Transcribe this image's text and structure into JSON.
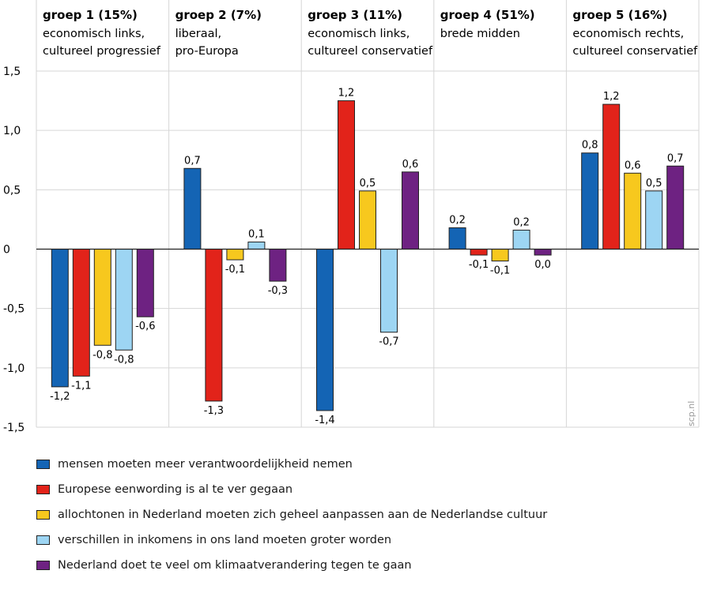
{
  "chart_data": {
    "type": "bar",
    "groups": [
      {
        "title": "groep 1 (15%)",
        "subtitle": [
          "economisch links,",
          "cultureel progressief"
        ]
      },
      {
        "title": "groep 2 (7%)",
        "subtitle": [
          "liberaal,",
          "pro-Europa"
        ]
      },
      {
        "title": "groep 3 (11%)",
        "subtitle": [
          "economisch links,",
          "cultureel conservatief"
        ]
      },
      {
        "title": "groep 4 (51%)",
        "subtitle": [
          "brede midden"
        ]
      },
      {
        "title": "groep 5 (16%)",
        "subtitle": [
          "economisch rechts,",
          "cultureel conservatief"
        ]
      }
    ],
    "series": [
      {
        "name": "mensen moeten meer verantwoordelijkheid  nemen",
        "color": "#1464b4",
        "values": [
          -1.16,
          0.68,
          -1.36,
          0.18,
          0.81
        ],
        "labels": [
          "-1,2",
          "0,7",
          "-1,4",
          "0,2",
          "0,8"
        ]
      },
      {
        "name": "Europese eenwording is al te ver gegaan",
        "color": "#e2231a",
        "values": [
          -1.07,
          -1.28,
          1.25,
          -0.05,
          1.22
        ],
        "labels": [
          "-1,1",
          "-1,3",
          "1,2",
          "-0,1",
          "1,2"
        ]
      },
      {
        "name": "allochtonen in Nederland moeten zich geheel aanpassen aan de Nederlandse cultuur",
        "color": "#f7c81e",
        "values": [
          -0.81,
          -0.09,
          0.49,
          -0.1,
          0.64
        ],
        "labels": [
          "-0,8",
          "-0,1",
          "0,5",
          "-0,1",
          "0,6"
        ]
      },
      {
        "name": "verschillen in inkomens in ons land moeten groter worden",
        "color": "#9dd5f3",
        "values": [
          -0.85,
          0.06,
          -0.7,
          0.16,
          0.49
        ],
        "labels": [
          "-0,8",
          "0,1",
          "-0,7",
          "0,2",
          "0,5"
        ]
      },
      {
        "name": "Nederland doet te veel om klimaatverandering tegen te gaan",
        "color": "#6e2282",
        "values": [
          -0.57,
          -0.27,
          0.65,
          -0.05,
          0.7
        ],
        "labels": [
          "-0,6",
          "-0,3",
          "0,6",
          "0,0",
          "0,7"
        ]
      }
    ],
    "yticks": [
      {
        "value": 1.5,
        "label": "1,5"
      },
      {
        "value": 1.0,
        "label": "1,0"
      },
      {
        "value": 0.5,
        "label": "0,5"
      },
      {
        "value": 0,
        "label": "0"
      },
      {
        "value": -0.5,
        "label": "-0,5"
      },
      {
        "value": -1.0,
        "label": "-1,0"
      },
      {
        "value": -1.5,
        "label": "-1,5"
      }
    ],
    "ylim": [
      -1.5,
      1.5
    ],
    "legend_position": "bottom",
    "watermark": "scp.nl"
  }
}
